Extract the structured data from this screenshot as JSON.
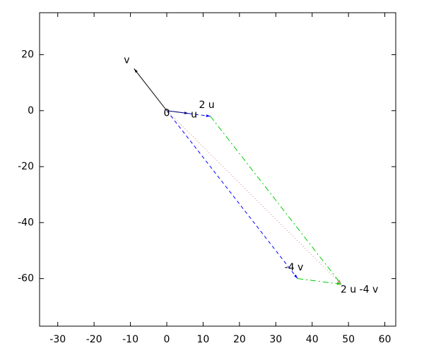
{
  "chart_data": {
    "type": "vector",
    "xlim": [
      -35,
      63
    ],
    "ylim": [
      -77,
      35
    ],
    "xticks": [
      -30,
      -20,
      -10,
      0,
      10,
      20,
      30,
      40,
      50,
      60
    ],
    "yticks": [
      -60,
      -40,
      -20,
      0,
      20
    ],
    "vectors": [
      {
        "from": [
          0,
          0
        ],
        "to": [
          6,
          -1
        ],
        "color": "#000080",
        "dash": "solid"
      },
      {
        "from": [
          0,
          0
        ],
        "to": [
          -9,
          15
        ],
        "color": "#000000",
        "dash": "solid"
      },
      {
        "from": [
          6,
          -1
        ],
        "to": [
          12,
          -2
        ],
        "color": "#0000ff",
        "dash": "dashed"
      },
      {
        "from": [
          0,
          0
        ],
        "to": [
          36,
          -60
        ],
        "color": "#0000ff",
        "dash": "dashed"
      },
      {
        "from": [
          12,
          -2
        ],
        "to": [
          48,
          -62
        ],
        "color": "#00cc00",
        "dash": "dashdot"
      },
      {
        "from": [
          36,
          -60
        ],
        "to": [
          48,
          -62
        ],
        "color": "#00cc00",
        "dash": "dashdot"
      },
      {
        "from": [
          0,
          0
        ],
        "to": [
          48,
          -62
        ],
        "color": "#e08080",
        "dash": "dotted"
      }
    ],
    "labels": [
      {
        "text": "v",
        "x": -11,
        "y": 18
      },
      {
        "text": "0",
        "x": 0,
        "y": -1
      },
      {
        "text": "u",
        "x": 7.5,
        "y": -1.5
      },
      {
        "text": "2 u",
        "x": 11,
        "y": 2
      },
      {
        "text": "-4 v",
        "x": 35,
        "y": -56
      },
      {
        "text": "2 u -4 v",
        "x": 53,
        "y": -64
      }
    ]
  }
}
